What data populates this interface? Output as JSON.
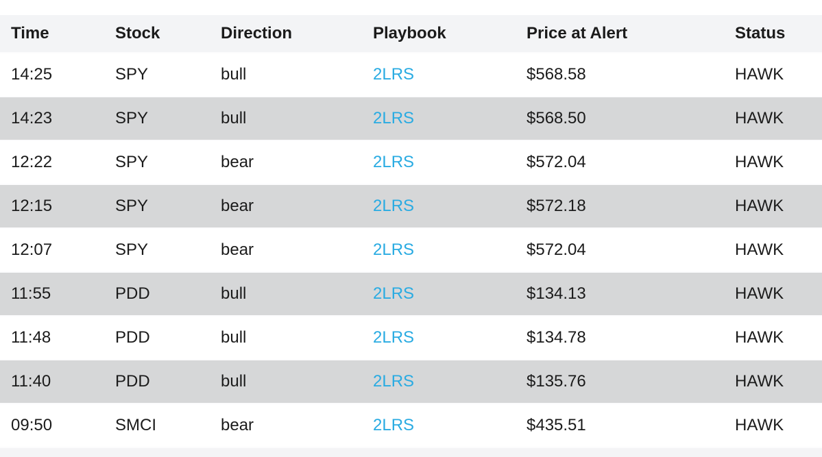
{
  "table": {
    "columns": [
      {
        "key": "time",
        "label": "Time"
      },
      {
        "key": "stock",
        "label": "Stock"
      },
      {
        "key": "direction",
        "label": "Direction"
      },
      {
        "key": "playbook",
        "label": "Playbook"
      },
      {
        "key": "price",
        "label": "Price at Alert"
      },
      {
        "key": "status",
        "label": "Status"
      }
    ],
    "rows": [
      {
        "time": "14:25",
        "stock": "SPY",
        "direction": "bull",
        "playbook": "2LRS",
        "price": "$568.58",
        "status": "HAWK"
      },
      {
        "time": "14:23",
        "stock": "SPY",
        "direction": "bull",
        "playbook": "2LRS",
        "price": "$568.50",
        "status": "HAWK"
      },
      {
        "time": "12:22",
        "stock": "SPY",
        "direction": "bear",
        "playbook": "2LRS",
        "price": "$572.04",
        "status": "HAWK"
      },
      {
        "time": "12:15",
        "stock": "SPY",
        "direction": "bear",
        "playbook": "2LRS",
        "price": "$572.18",
        "status": "HAWK"
      },
      {
        "time": "12:07",
        "stock": "SPY",
        "direction": "bear",
        "playbook": "2LRS",
        "price": "$572.04",
        "status": "HAWK"
      },
      {
        "time": "11:55",
        "stock": "PDD",
        "direction": "bull",
        "playbook": "2LRS",
        "price": "$134.13",
        "status": "HAWK"
      },
      {
        "time": "11:48",
        "stock": "PDD",
        "direction": "bull",
        "playbook": "2LRS",
        "price": "$134.78",
        "status": "HAWK"
      },
      {
        "time": "11:40",
        "stock": "PDD",
        "direction": "bull",
        "playbook": "2LRS",
        "price": "$135.76",
        "status": "HAWK"
      },
      {
        "time": "09:50",
        "stock": "SMCI",
        "direction": "bear",
        "playbook": "2LRS",
        "price": "$435.51",
        "status": "HAWK"
      }
    ]
  },
  "colors": {
    "header_bg": "#f3f4f6",
    "alt_row_bg": "#d6d7d8",
    "link": "#29abe2",
    "text": "#1b1b1b",
    "row_separator": "#fcfcfd",
    "footer_bg": "#f4f4f6"
  }
}
